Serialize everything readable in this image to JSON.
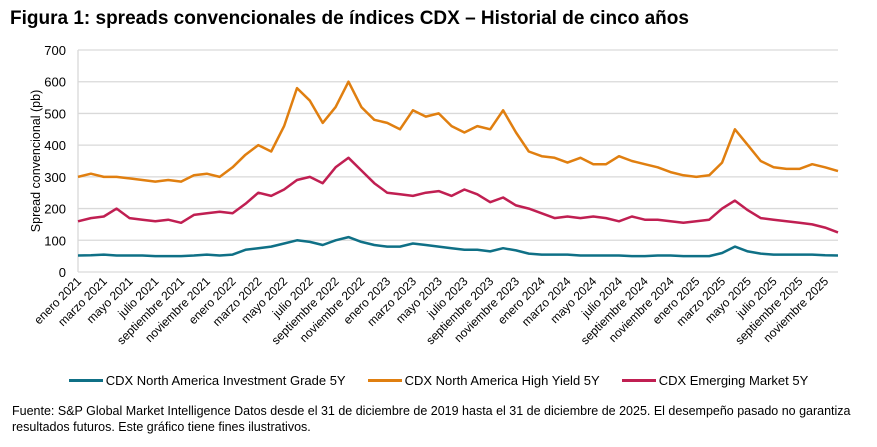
{
  "title": "Figura 1: spreads convencionales  de índices CDX – Historial de cinco años",
  "footnote": "Fuente: S&P Global Market Intelligence Datos desde el 31 de diciembre de 2019 hasta el 31 de diciembre de 2025. El desempeño pasado no garantiza resultados futuros. Este gráfico tiene fines ilustrativos.",
  "chart_data": {
    "type": "line",
    "ylabel": "Spread convencional (pb)",
    "xlabel": "",
    "ylim": [
      0,
      700
    ],
    "yticks": [
      0,
      100,
      200,
      300,
      400,
      500,
      600,
      700
    ],
    "grid": true,
    "legend_position": "bottom",
    "x_tick_labels": [
      "enero 2021",
      "marzo 2021",
      "mayo 2021",
      "julio 2021",
      "septiembre 2021",
      "noviembre 2021",
      "enero 2022",
      "marzo 2022",
      "mayo 2022",
      "julio 2022",
      "septiembre 2022",
      "noviembre 2022",
      "enero 2023",
      "marzo 2023",
      "mayo 2023",
      "julio 2023",
      "septiembre 2023",
      "noviembre 2023",
      "enero 2024",
      "marzo 2024",
      "mayo 2024",
      "julio 2024",
      "septiembre 2024",
      "noviembre 2024",
      "enero 2025",
      "marzo 2025",
      "mayo 2025",
      "julio 2025",
      "septiembre 2025",
      "noviembre 2025"
    ],
    "x_start": "2021-01",
    "x_end": "2025-12",
    "x_step": "monthly",
    "series": [
      {
        "name": "CDX North America Investment Grade 5Y",
        "color": "#0f7086",
        "values": [
          52,
          53,
          55,
          52,
          52,
          52,
          50,
          50,
          50,
          52,
          55,
          52,
          55,
          70,
          75,
          80,
          90,
          100,
          95,
          85,
          100,
          110,
          95,
          85,
          80,
          80,
          90,
          85,
          80,
          75,
          70,
          70,
          65,
          75,
          68,
          58,
          55,
          55,
          55,
          52,
          52,
          52,
          52,
          50,
          50,
          52,
          52,
          50,
          50,
          50,
          60,
          80,
          65,
          58,
          55,
          55,
          55,
          55,
          53,
          52
        ]
      },
      {
        "name": "CDX North America High Yield 5Y",
        "color": "#e07f10",
        "values": [
          300,
          310,
          300,
          300,
          295,
          290,
          285,
          290,
          285,
          305,
          310,
          300,
          330,
          370,
          400,
          380,
          460,
          580,
          540,
          470,
          520,
          600,
          520,
          480,
          470,
          450,
          510,
          490,
          500,
          460,
          440,
          460,
          450,
          510,
          440,
          380,
          365,
          360,
          345,
          360,
          340,
          340,
          365,
          350,
          340,
          330,
          315,
          305,
          300,
          305,
          345,
          450,
          400,
          350,
          330,
          325,
          325,
          340,
          330,
          318
        ]
      },
      {
        "name": "CDX Emerging Market 5Y",
        "color": "#c01f52",
        "values": [
          160,
          170,
          175,
          200,
          170,
          165,
          160,
          165,
          155,
          180,
          185,
          190,
          185,
          215,
          250,
          240,
          260,
          290,
          300,
          280,
          330,
          360,
          320,
          280,
          250,
          245,
          240,
          250,
          255,
          240,
          260,
          245,
          220,
          235,
          210,
          200,
          185,
          170,
          175,
          170,
          175,
          170,
          160,
          175,
          165,
          165,
          160,
          155,
          160,
          165,
          200,
          225,
          195,
          170,
          165,
          160,
          155,
          150,
          140,
          125
        ]
      }
    ]
  }
}
